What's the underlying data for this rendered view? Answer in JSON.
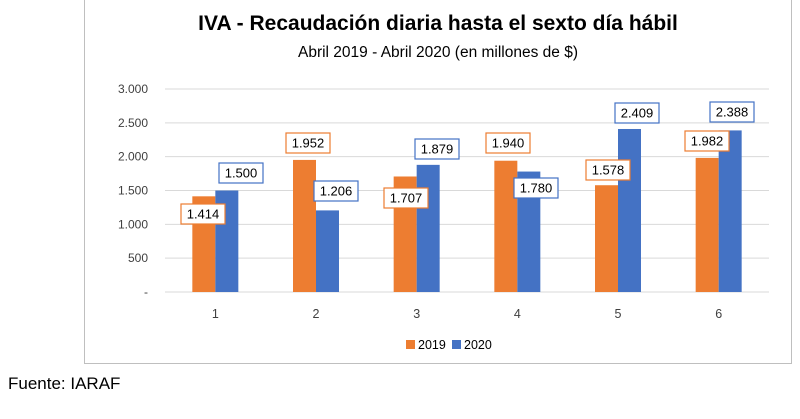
{
  "chart_data": {
    "type": "bar",
    "title": "IVA - Recaudación diaria hasta el sexto día hábil",
    "subtitle": "Abril 2019 - Abril 2020 (en millones de $)",
    "categories": [
      "1",
      "2",
      "3",
      "4",
      "5",
      "6"
    ],
    "series": [
      {
        "name": "2019",
        "values": [
          1414,
          1952,
          1707,
          1940,
          1578,
          1982
        ],
        "labels": [
          "1.414",
          "1.952",
          "1.707",
          "1.940",
          "1.578",
          "1.982"
        ],
        "color": "#ED7D31"
      },
      {
        "name": "2020",
        "values": [
          1500,
          1206,
          1879,
          1780,
          2409,
          2388
        ],
        "labels": [
          "1.500",
          "1.206",
          "1.879",
          "1.780",
          "2.409",
          "2.388"
        ],
        "color": "#4472C4"
      }
    ],
    "yticks": [
      0,
      500,
      1000,
      1500,
      2000,
      2500,
      3000
    ],
    "ytick_labels": [
      "-",
      "500",
      "1.000",
      "1.500",
      "2.000",
      "2.500",
      "3.000"
    ],
    "ylim": [
      0,
      3000
    ],
    "xlabel": "",
    "ylabel": "",
    "grid": true,
    "legend": "bottom"
  },
  "source": "Fuente: IARAF"
}
